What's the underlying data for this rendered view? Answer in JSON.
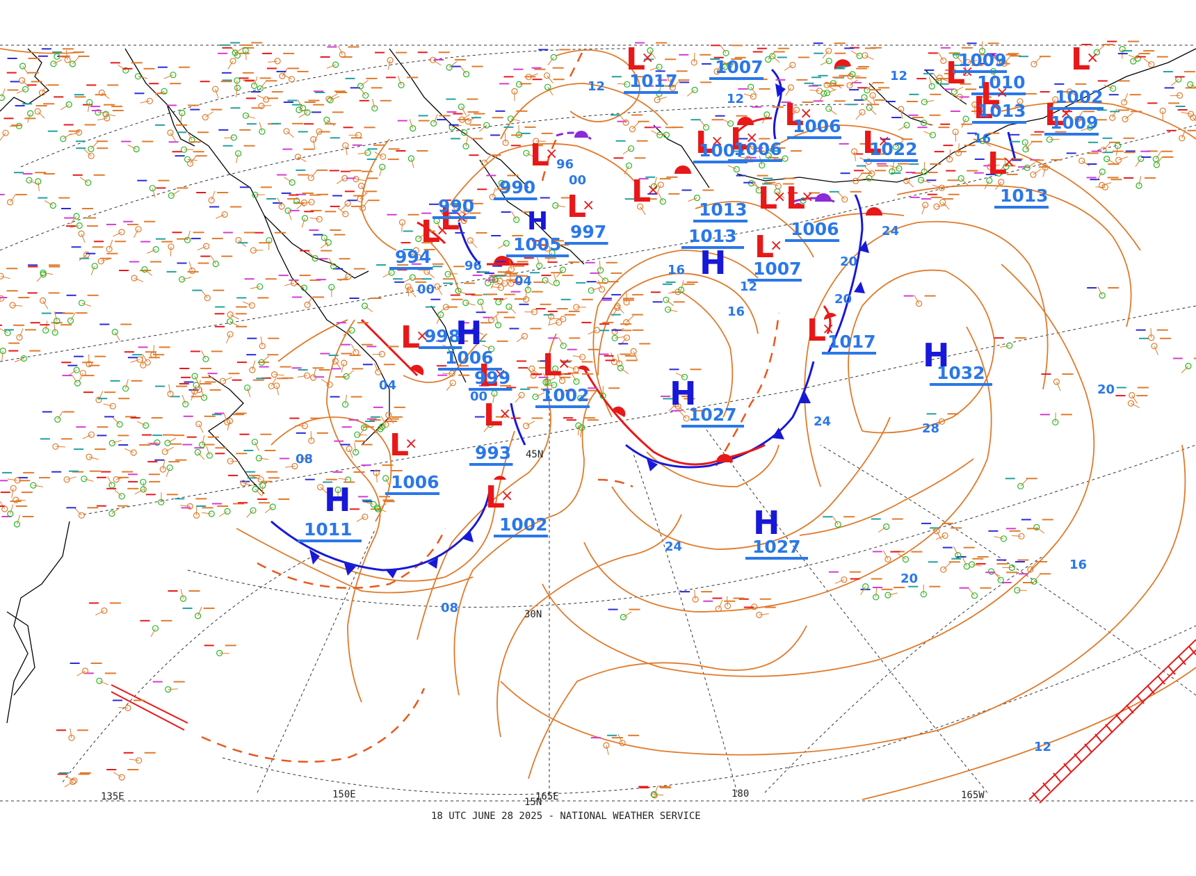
{
  "footer": "18 UTC JUNE 28 2025 - NATIONAL WEATHER SERVICE",
  "colors": {
    "isobar": "#e07a2a",
    "high": "#1818d8",
    "low": "#e81818",
    "pressure_label": "#2a78e8",
    "isobar_value": "#2a78e8",
    "grid": "#333333",
    "coast": "#000000",
    "station_green": "#22b822",
    "station_magenta": "#d43bd4",
    "occluded": "#8a2ad8"
  },
  "grid_labels": {
    "lon": [
      "135E",
      "150E",
      "165E",
      "180",
      "165W"
    ],
    "lat": [
      "45N",
      "30N",
      "15N"
    ]
  },
  "highs": [
    {
      "value": "1011"
    },
    {
      "value": "1006"
    },
    {
      "value": "1027"
    },
    {
      "value": "1027"
    },
    {
      "value": "1032"
    },
    {
      "value": "1013"
    },
    {
      "value": "1005"
    }
  ],
  "lows": [
    {
      "value": "1006"
    },
    {
      "value": "998"
    },
    {
      "value": "1002"
    },
    {
      "value": "993"
    },
    {
      "value": "1002"
    },
    {
      "value": "990"
    },
    {
      "value": "994"
    },
    {
      "value": "990"
    },
    {
      "value": "997"
    },
    {
      "value": "1007"
    },
    {
      "value": "1017"
    },
    {
      "value": "1007"
    },
    {
      "value": "1006"
    },
    {
      "value": "1013"
    },
    {
      "value": "1006"
    },
    {
      "value": "1006"
    },
    {
      "value": "1007"
    },
    {
      "value": "1017"
    },
    {
      "value": "1022"
    },
    {
      "value": "1013"
    },
    {
      "value": "1009"
    },
    {
      "value": "1010"
    },
    {
      "value": "1013"
    },
    {
      "value": "1009"
    },
    {
      "value": "1002"
    },
    {
      "value": "999"
    }
  ],
  "isobar_values": [
    "08",
    "08",
    "04",
    "04",
    "00",
    "00",
    "96",
    "96",
    "00",
    "12",
    "24",
    "24",
    "20",
    "20",
    "16",
    "16",
    "12",
    "12",
    "28",
    "20",
    "20",
    "16",
    "12",
    "24",
    "12",
    "16"
  ]
}
